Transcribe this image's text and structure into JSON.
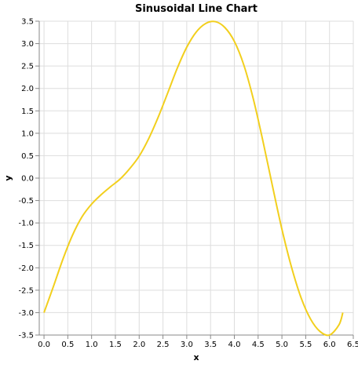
{
  "chart_data": {
    "type": "line",
    "title": "Sinusoidal Line Chart",
    "xlabel": "x",
    "ylabel": "y",
    "xlim": [
      -0.1,
      6.5
    ],
    "ylim": [
      -3.5,
      3.5
    ],
    "grid": true,
    "x_ticks": [
      "0.0",
      "0.5",
      "1.0",
      "1.5",
      "2.0",
      "2.5",
      "3.0",
      "3.5",
      "4.0",
      "4.5",
      "5.0",
      "5.5",
      "6.0",
      "6.5"
    ],
    "y_ticks": [
      "3.5",
      "3.0",
      "2.5",
      "2.0",
      "1.5",
      "1.0",
      "0.5",
      "0.0",
      "-0.5",
      "-1.0",
      "-1.5",
      "-2.0",
      "-2.5",
      "-3.0",
      "-3.5"
    ],
    "series": [
      {
        "color": "#f2cf1d",
        "x": [
          0.0,
          0.2,
          0.4,
          0.6,
          0.8,
          1.0,
          1.2,
          1.4,
          1.6,
          1.8,
          2.0,
          2.2,
          2.4,
          2.6,
          2.8,
          3.0,
          3.2,
          3.4,
          3.6,
          3.8,
          4.0,
          4.2,
          4.4,
          4.6,
          4.8,
          5.0,
          5.2,
          5.4,
          5.6,
          5.8,
          6.0,
          6.2,
          6.28
        ],
        "y": [
          -3.0,
          -2.41,
          -1.8,
          -1.27,
          -0.86,
          -0.58,
          -0.37,
          -0.19,
          -0.02,
          0.21,
          0.49,
          0.88,
          1.36,
          1.9,
          2.45,
          2.92,
          3.26,
          3.45,
          3.49,
          3.36,
          3.05,
          2.52,
          1.76,
          0.83,
          -0.17,
          -1.14,
          -1.98,
          -2.66,
          -3.14,
          -3.42,
          -3.5,
          -3.27,
          -3.0
        ]
      }
    ]
  }
}
